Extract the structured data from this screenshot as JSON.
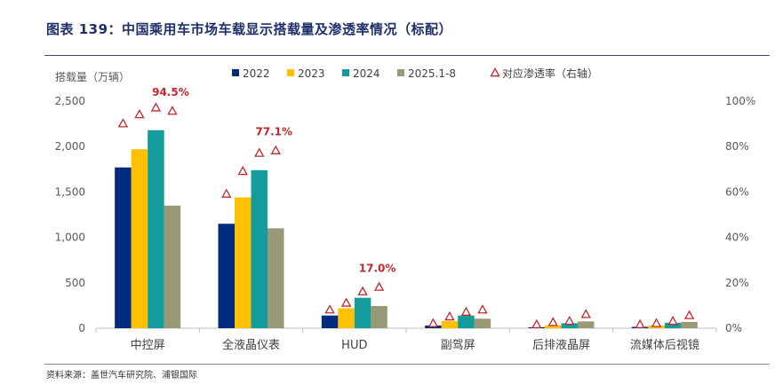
{
  "figure": {
    "title": "图表 139：中国乘用车市场车载显示搭载量及渗透率情况（标配）",
    "source": "资料来源：盖世汽车研究院、浦银国际"
  },
  "chart_data": {
    "type": "bar",
    "title": "图表 139：中国乘用车市场车载显示搭载量及渗透率情况（标配）",
    "ylabel": "搭载量（万辆）",
    "ylim": [
      0,
      2500
    ],
    "y_ticks": [
      "0",
      "500",
      "1,000",
      "1,500",
      "2,000",
      "2,500"
    ],
    "y2lim": [
      0,
      100
    ],
    "y2_ticks": [
      "0%",
      "20%",
      "40%",
      "60%",
      "80%",
      "100%"
    ],
    "grid": false,
    "legend_position": "top",
    "categories": [
      "中控屏",
      "全液晶仪表",
      "HUD",
      "副驾屏",
      "后排液晶屏",
      "流媒体后视镜"
    ],
    "series": [
      {
        "name": "2022",
        "color": "#002b7f",
        "values": [
          1770,
          1150,
          140,
          30,
          10,
          15
        ]
      },
      {
        "name": "2023",
        "color": "#ffc000",
        "values": [
          1970,
          1440,
          220,
          80,
          30,
          30
        ]
      },
      {
        "name": "2024",
        "color": "#149b9b",
        "values": [
          2180,
          1740,
          335,
          140,
          55,
          60
        ]
      },
      {
        "name": "2025.1-8",
        "color": "#999877",
        "values": [
          1350,
          1100,
          245,
          105,
          75,
          70
        ]
      }
    ],
    "penetration": {
      "name": "对应渗透率（右轴）",
      "axis": "right",
      "marker": "triangle",
      "color": "#c0282d",
      "values": [
        [
          89,
          93,
          96,
          94.5
        ],
        [
          58,
          68,
          76,
          77.1
        ],
        [
          7,
          10,
          15,
          17.0
        ],
        [
          1,
          4,
          6,
          7
        ],
        [
          0.5,
          1.5,
          2,
          5
        ],
        [
          0.5,
          1,
          2,
          4.5
        ]
      ]
    },
    "annotations": [
      {
        "category": "中控屏",
        "text": "94.5%"
      },
      {
        "category": "全液晶仪表",
        "text": "77.1%"
      },
      {
        "category": "HUD",
        "text": "17.0%"
      }
    ]
  }
}
